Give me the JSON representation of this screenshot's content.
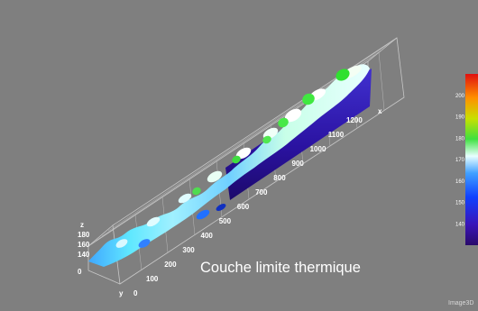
{
  "chart_data": {
    "type": "surface-3d",
    "x_axis": {
      "label": "x",
      "ticks": [
        100,
        200,
        300,
        400,
        500,
        600,
        700,
        800,
        900,
        1000,
        1100,
        1200
      ]
    },
    "y_axis": {
      "label": "y",
      "ticks": [
        0
      ]
    },
    "z_axis": {
      "label": "z",
      "ticks": [
        140,
        160,
        180
      ],
      "origin_label": "0"
    },
    "colorbar": {
      "ticks": [
        140,
        150,
        160,
        170,
        180,
        190,
        200
      ],
      "range": [
        130,
        210
      ],
      "colors": [
        "#2a0a6a",
        "#3a14b8",
        "#1040ff",
        "#40a0ff",
        "#e8ffff",
        "#40e040",
        "#c8e000",
        "#ff9000",
        "#e01010"
      ]
    },
    "grid": true
  },
  "caption": "Couche limite thermique",
  "watermark": "Image3D"
}
